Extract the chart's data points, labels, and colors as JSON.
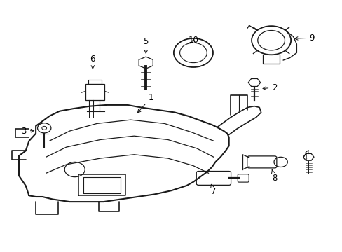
{
  "title": "",
  "background_color": "#ffffff",
  "line_color": "#1a1a1a",
  "text_color": "#000000",
  "figsize": [
    4.89,
    3.6
  ],
  "dpi": 100
}
